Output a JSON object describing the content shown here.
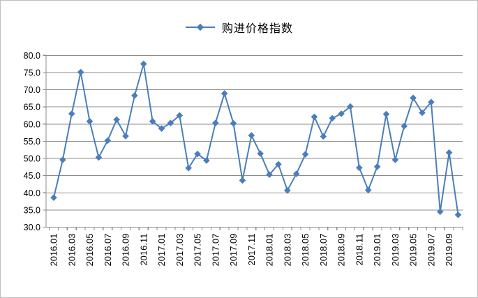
{
  "legend": {
    "label": "购进价格指数"
  },
  "colors": {
    "series": "#4A7EBB",
    "grid": "#8c8c8c",
    "axis": "#8c8c8c",
    "text": "#000000",
    "canvas_border": "#bfbfbf",
    "background": "#ffffff"
  },
  "chart_data": {
    "type": "line",
    "title": "",
    "legend_position": "top-center",
    "marker": "diamond",
    "grid": "horizontal",
    "ylim": [
      30,
      80
    ],
    "y_tick_step": 5,
    "y_tick_labels": [
      "80.0",
      "75.0",
      "70.0",
      "65.0",
      "60.0",
      "55.0",
      "50.0",
      "45.0",
      "40.0",
      "35.0",
      "30.0"
    ],
    "x_label_every": 2,
    "x_tick_labels_shown": [
      "2016.01",
      "2016.03",
      "2016.05",
      "2016.07",
      "2016.09",
      "2016.11",
      "2017.01",
      "2017.03",
      "2017.05",
      "2017.07",
      "2017.09",
      "2017.11",
      "2018.01",
      "2018.03",
      "2018.05",
      "2018.07",
      "2018.09",
      "2018.11",
      "2019.01",
      "2019.03",
      "2019.05",
      "2019.07",
      "2019.09"
    ],
    "x": [
      "2016.01",
      "2016.02",
      "2016.03",
      "2016.04",
      "2016.05",
      "2016.06",
      "2016.07",
      "2016.08",
      "2016.09",
      "2016.10",
      "2016.11",
      "2016.12",
      "2017.01",
      "2017.02",
      "2017.03",
      "2017.04",
      "2017.05",
      "2017.06",
      "2017.07",
      "2017.08",
      "2017.09",
      "2017.10",
      "2017.11",
      "2017.12",
      "2018.01",
      "2018.02",
      "2018.03",
      "2018.04",
      "2018.05",
      "2018.06",
      "2018.07",
      "2018.08",
      "2018.09",
      "2018.10",
      "2018.11",
      "2018.12",
      "2019.01",
      "2019.02",
      "2019.03",
      "2019.04",
      "2019.05",
      "2019.06",
      "2019.07",
      "2019.08",
      "2019.09",
      "2019.10"
    ],
    "series": [
      {
        "name": "购进价格指数",
        "values": [
          38.6,
          49.6,
          63.0,
          75.1,
          60.8,
          50.3,
          55.2,
          61.3,
          56.5,
          68.3,
          77.5,
          60.8,
          58.7,
          60.3,
          62.5,
          47.2,
          51.3,
          49.4,
          60.3,
          68.9,
          60.2,
          43.6,
          56.7,
          51.4,
          45.3,
          48.3,
          40.7,
          45.5,
          51.2,
          62.1,
          56.4,
          61.7,
          63.0,
          65.1,
          47.3,
          40.8,
          47.6,
          62.9,
          49.6,
          59.4,
          67.6,
          63.3,
          66.4,
          34.5,
          51.7,
          33.6
        ]
      }
    ]
  }
}
